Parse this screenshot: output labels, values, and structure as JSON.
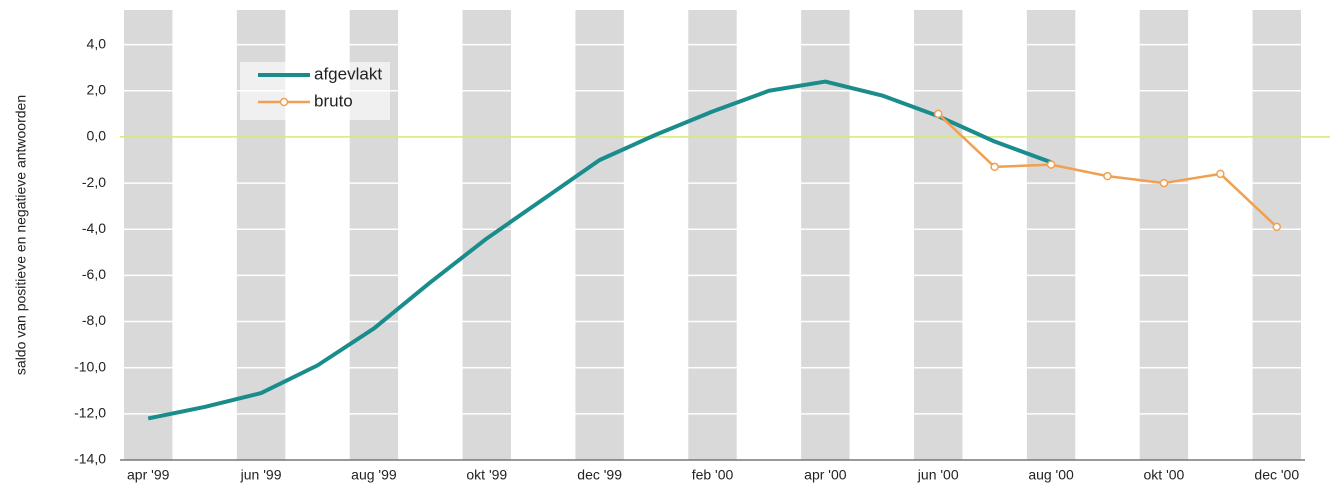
{
  "chart_data": {
    "type": "line",
    "y_label": "saldo van positieve en negatieve antwoorden",
    "categories": [
      "apr '99",
      null,
      "jun '99",
      null,
      "aug '99",
      null,
      "okt '99",
      null,
      "dec '99",
      null,
      "feb '00",
      null,
      "apr '00",
      null,
      "jun '00",
      null,
      "aug '00",
      null,
      "okt '00",
      null,
      "dec '00"
    ],
    "series": [
      {
        "name": "afgevlakt",
        "color": "#1a8c8c",
        "marker": false,
        "values": [
          -12.2,
          -11.7,
          -11.1,
          -9.9,
          -8.3,
          -6.3,
          -4.4,
          -2.7,
          -1.0,
          0.1,
          1.1,
          2.0,
          2.4,
          1.8,
          0.9,
          -0.2,
          -1.1,
          null,
          null,
          null,
          null
        ]
      },
      {
        "name": "bruto",
        "color": "#f0a050",
        "marker": true,
        "values": [
          null,
          null,
          null,
          null,
          null,
          null,
          null,
          null,
          null,
          null,
          null,
          null,
          null,
          null,
          1.0,
          -1.3,
          -1.2,
          -1.7,
          -2.0,
          -1.6,
          -3.9
        ]
      }
    ],
    "ylim": [
      -14,
      5.5
    ],
    "yticks": [
      {
        "value": -14,
        "label": "-14,0"
      },
      {
        "value": -12,
        "label": "-12,0"
      },
      {
        "value": -10,
        "label": "-10,0"
      },
      {
        "value": -8,
        "label": "-8,0"
      },
      {
        "value": -6,
        "label": "-6,0"
      },
      {
        "value": -4,
        "label": "-4,0"
      },
      {
        "value": -2,
        "label": "-2,0"
      },
      {
        "value": 0,
        "label": "0,0"
      },
      {
        "value": 2,
        "label": "2,0"
      },
      {
        "value": 4,
        "label": "4,0"
      }
    ],
    "grid": true,
    "band_color": "#d9d9d9",
    "zero_line_color": "#d8e87a",
    "legend": "upper left"
  }
}
